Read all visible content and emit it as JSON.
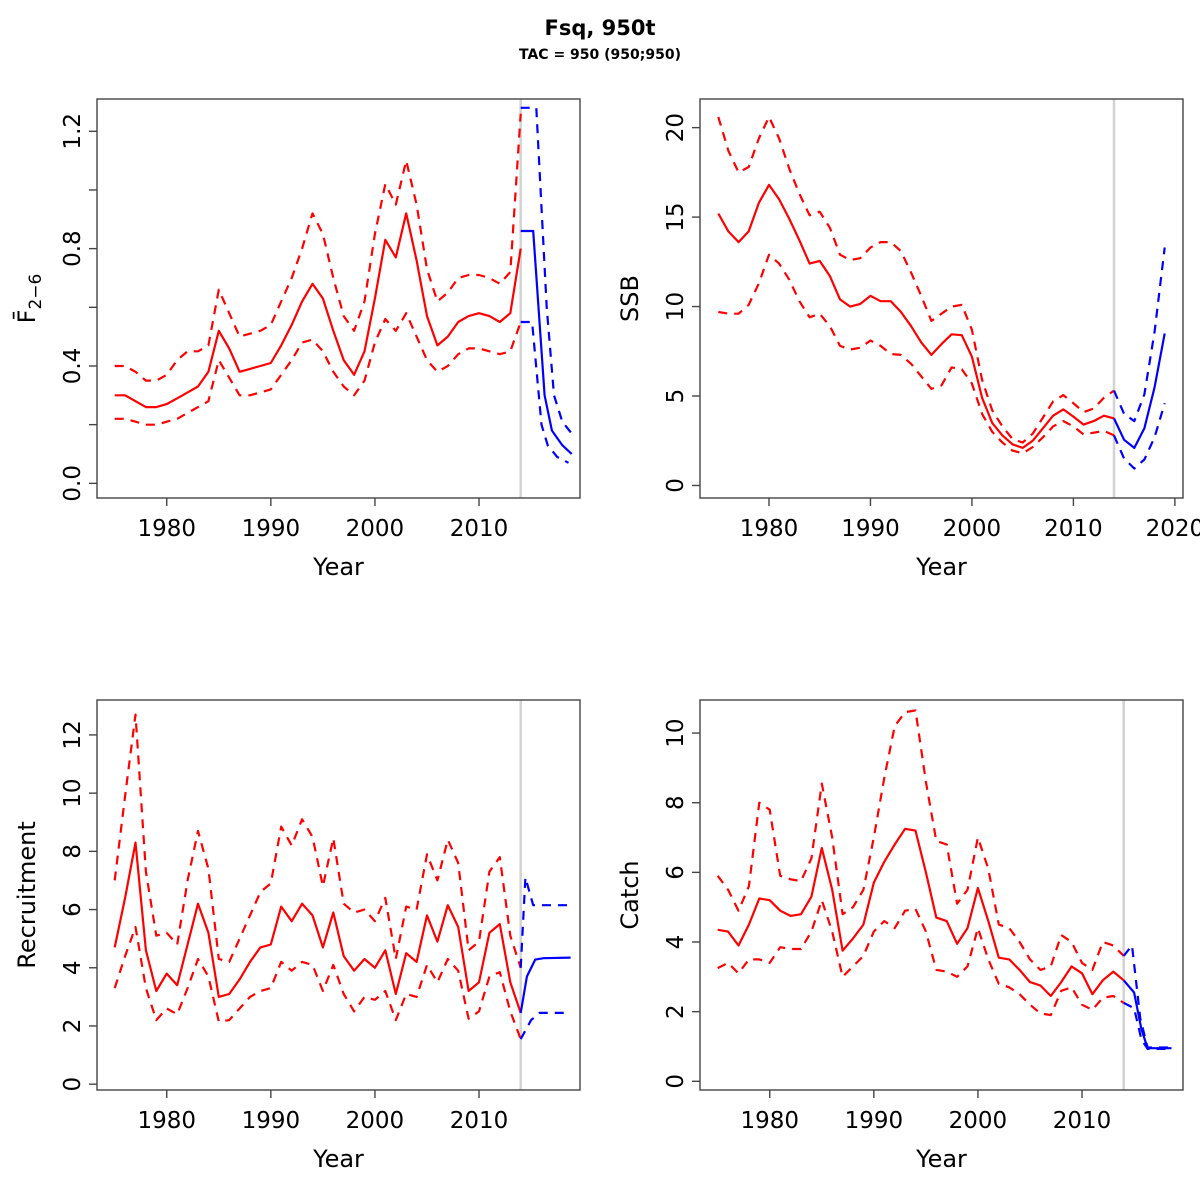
{
  "header": {
    "title": "Fsq, 950t",
    "subtitle": "TAC = 950 (950;950)"
  },
  "colors": {
    "historical": "#ff0000",
    "projection": "#0000ff",
    "divider": "#d3d3d3",
    "frame": "#454545",
    "text": "#000000"
  },
  "divider_year": 2014,
  "years_historical": [
    1975,
    1976,
    1977,
    1978,
    1979,
    1980,
    1981,
    1982,
    1983,
    1984,
    1985,
    1986,
    1987,
    1988,
    1989,
    1990,
    1991,
    1992,
    1993,
    1994,
    1995,
    1996,
    1997,
    1998,
    1999,
    2000,
    2001,
    2002,
    2003,
    2004,
    2005,
    2006,
    2007,
    2008,
    2009,
    2010,
    2011,
    2012,
    2013,
    2014
  ],
  "chart_data": [
    {
      "type": "line",
      "name": "fbar",
      "ylabel": "F̄",
      "ylabel_sub": "2−6",
      "xlabel": "Year",
      "xlim": [
        1973.3,
        2019.7
      ],
      "ylim": [
        -0.05,
        1.31
      ],
      "xticks": [
        1980,
        1990,
        2000,
        2010
      ],
      "yticks": [
        {
          "v": 0,
          "label": "0.0"
        },
        {
          "v": 0.2,
          "label": null
        },
        {
          "v": 0.4,
          "label": "0.4"
        },
        {
          "v": 0.6,
          "label": null
        },
        {
          "v": 0.8,
          "label": "0.8"
        },
        {
          "v": 1.0,
          "label": null
        },
        {
          "v": 1.2,
          "label": "1.2"
        }
      ],
      "legend": "red solid = median (historical), red dashed = CI, blue = projection",
      "series": [
        {
          "name": "median-historical",
          "role": "historical",
          "dash": false,
          "x_ref": "years_historical",
          "y": [
            0.3,
            0.3,
            0.28,
            0.26,
            0.26,
            0.27,
            0.29,
            0.31,
            0.33,
            0.38,
            0.52,
            0.46,
            0.38,
            0.39,
            0.4,
            0.41,
            0.47,
            0.54,
            0.62,
            0.68,
            0.63,
            0.52,
            0.42,
            0.37,
            0.45,
            0.63,
            0.83,
            0.77,
            0.92,
            0.76,
            0.57,
            0.47,
            0.5,
            0.55,
            0.57,
            0.58,
            0.57,
            0.55,
            0.58,
            0.8
          ]
        },
        {
          "name": "ci-upper-historical",
          "role": "historical",
          "dash": true,
          "x_ref": "years_historical",
          "y": [
            0.4,
            0.4,
            0.38,
            0.35,
            0.35,
            0.37,
            0.42,
            0.45,
            0.45,
            0.47,
            0.66,
            0.58,
            0.5,
            0.51,
            0.52,
            0.54,
            0.62,
            0.7,
            0.8,
            0.92,
            0.85,
            0.7,
            0.57,
            0.52,
            0.62,
            0.85,
            1.02,
            0.95,
            1.1,
            0.95,
            0.73,
            0.62,
            0.65,
            0.7,
            0.71,
            0.71,
            0.7,
            0.68,
            0.72,
            1.26
          ]
        },
        {
          "name": "ci-lower-historical",
          "role": "historical",
          "dash": true,
          "x_ref": "years_historical",
          "y": [
            0.22,
            0.22,
            0.21,
            0.2,
            0.2,
            0.21,
            0.22,
            0.24,
            0.26,
            0.28,
            0.42,
            0.36,
            0.3,
            0.3,
            0.31,
            0.32,
            0.37,
            0.42,
            0.48,
            0.49,
            0.45,
            0.38,
            0.33,
            0.3,
            0.35,
            0.48,
            0.56,
            0.52,
            0.58,
            0.5,
            0.42,
            0.38,
            0.4,
            0.44,
            0.46,
            0.46,
            0.45,
            0.44,
            0.45,
            0.55
          ]
        },
        {
          "name": "median-projection",
          "role": "projection",
          "dash": false,
          "x": [
            2014,
            2015.2,
            2016.3,
            2017,
            2018,
            2018.9
          ],
          "y": [
            0.86,
            0.86,
            0.3,
            0.18,
            0.13,
            0.1
          ]
        },
        {
          "name": "ci-upper-projection",
          "role": "projection",
          "dash": true,
          "x": [
            2014,
            2015.5,
            2016.5,
            2017.2,
            2018,
            2018.9
          ],
          "y": [
            1.28,
            1.28,
            0.6,
            0.3,
            0.21,
            0.17
          ]
        },
        {
          "name": "ci-lower-projection",
          "role": "projection",
          "dash": true,
          "x": [
            2014,
            2015.1,
            2016,
            2016.6,
            2017.5,
            2018.6
          ],
          "y": [
            0.55,
            0.55,
            0.2,
            0.13,
            0.09,
            0.07
          ]
        }
      ]
    },
    {
      "type": "line",
      "name": "ssb",
      "ylabel": "SSB",
      "xlabel": "Year",
      "xlim": [
        1973.2,
        2020.8
      ],
      "ylim": [
        -0.7,
        21.6
      ],
      "xticks": [
        1980,
        1990,
        2000,
        2010,
        2020
      ],
      "yticks": [
        {
          "v": 0,
          "label": "0"
        },
        {
          "v": 5,
          "label": "5"
        },
        {
          "v": 10,
          "label": "10"
        },
        {
          "v": 15,
          "label": "15"
        },
        {
          "v": 20,
          "label": "20"
        }
      ],
      "legend": "red solid = median (historical), red dashed = CI, blue = projection",
      "series": [
        {
          "name": "median-historical",
          "role": "historical",
          "dash": false,
          "x_ref": "years_historical",
          "y": [
            15.2,
            14.2,
            13.6,
            14.2,
            15.8,
            16.8,
            16.0,
            14.9,
            13.7,
            12.4,
            12.55,
            11.7,
            10.4,
            10.0,
            10.15,
            10.6,
            10.3,
            10.3,
            9.7,
            8.9,
            8.0,
            7.3,
            7.9,
            8.45,
            8.4,
            7.2,
            4.9,
            3.5,
            2.8,
            2.3,
            2.1,
            2.5,
            3.2,
            3.9,
            4.25,
            3.85,
            3.4,
            3.6,
            3.9,
            3.75
          ]
        },
        {
          "name": "ci-upper-historical",
          "role": "historical",
          "dash": true,
          "x_ref": "years_historical",
          "y": [
            20.6,
            18.7,
            17.5,
            17.8,
            19.4,
            20.6,
            19.4,
            17.7,
            16.3,
            15.1,
            15.3,
            14.4,
            12.9,
            12.6,
            12.7,
            13.3,
            13.6,
            13.6,
            13.1,
            11.9,
            10.6,
            9.2,
            9.6,
            10.0,
            10.1,
            8.7,
            5.9,
            4.2,
            3.3,
            2.6,
            2.4,
            2.9,
            3.8,
            4.7,
            5.05,
            4.6,
            4.1,
            4.3,
            4.9,
            5.3
          ]
        },
        {
          "name": "ci-lower-historical",
          "role": "historical",
          "dash": true,
          "x_ref": "years_historical",
          "y": [
            9.7,
            9.6,
            9.6,
            10.1,
            11.3,
            12.9,
            12.4,
            11.5,
            10.3,
            9.4,
            9.6,
            8.9,
            7.8,
            7.6,
            7.7,
            8.1,
            7.8,
            7.35,
            7.3,
            6.8,
            6.1,
            5.4,
            5.6,
            6.6,
            6.5,
            5.7,
            4.0,
            3.0,
            2.4,
            1.95,
            1.8,
            2.15,
            2.7,
            3.3,
            3.6,
            3.3,
            2.85,
            2.95,
            3.05,
            2.8
          ]
        },
        {
          "name": "median-projection",
          "role": "projection",
          "dash": false,
          "x": [
            2014,
            2015,
            2016,
            2017,
            2018,
            2019
          ],
          "y": [
            3.75,
            2.55,
            2.1,
            3.2,
            5.5,
            8.5
          ]
        },
        {
          "name": "ci-upper-projection",
          "role": "projection",
          "dash": true,
          "x": [
            2014,
            2015,
            2016,
            2017,
            2018,
            2019
          ],
          "y": [
            5.3,
            4.0,
            3.6,
            5.1,
            8.6,
            13.3
          ]
        },
        {
          "name": "ci-lower-projection",
          "role": "projection",
          "dash": true,
          "x": [
            2014,
            2015,
            2016,
            2017,
            2018,
            2019
          ],
          "y": [
            2.8,
            1.5,
            0.95,
            1.45,
            2.7,
            4.6
          ]
        }
      ]
    },
    {
      "type": "line",
      "name": "recruitment",
      "ylabel": "Recruitment",
      "xlabel": "Year",
      "xlim": [
        1973.3,
        2019.7
      ],
      "ylim": [
        -0.2,
        13.2
      ],
      "xticks": [
        1980,
        1990,
        2000,
        2010
      ],
      "yticks": [
        {
          "v": 0,
          "label": "0"
        },
        {
          "v": 2,
          "label": "2"
        },
        {
          "v": 4,
          "label": "4"
        },
        {
          "v": 6,
          "label": "6"
        },
        {
          "v": 8,
          "label": "8"
        },
        {
          "v": 10,
          "label": "10"
        },
        {
          "v": 12,
          "label": "12"
        }
      ],
      "legend": "red solid = median (historical), red dashed = CI, blue = projection",
      "series": [
        {
          "name": "median-historical",
          "role": "historical",
          "dash": false,
          "x_ref": "years_historical",
          "y": [
            4.7,
            6.4,
            8.3,
            4.6,
            3.2,
            3.8,
            3.4,
            4.8,
            6.2,
            5.2,
            3.0,
            3.1,
            3.6,
            4.2,
            4.7,
            4.8,
            6.1,
            5.6,
            6.2,
            5.8,
            4.7,
            5.9,
            4.4,
            3.9,
            4.3,
            4.0,
            4.6,
            3.1,
            4.5,
            4.2,
            5.8,
            4.9,
            6.15,
            5.4,
            3.2,
            3.5,
            5.2,
            5.5,
            3.5,
            2.45
          ]
        },
        {
          "name": "ci-upper-historical",
          "role": "historical",
          "dash": true,
          "x_ref": "years_historical",
          "y": [
            7.0,
            9.9,
            12.7,
            7.3,
            5.1,
            5.2,
            4.8,
            7.0,
            8.7,
            7.4,
            4.3,
            4.2,
            5.0,
            5.8,
            6.6,
            6.9,
            8.85,
            8.2,
            9.1,
            8.5,
            6.8,
            8.45,
            6.2,
            5.9,
            6.0,
            5.6,
            6.4,
            4.3,
            6.1,
            6.0,
            7.9,
            7.0,
            8.4,
            7.6,
            4.6,
            4.9,
            7.3,
            7.8,
            5.1,
            4.0
          ]
        },
        {
          "name": "ci-lower-historical",
          "role": "historical",
          "dash": true,
          "x_ref": "years_historical",
          "y": [
            3.3,
            4.4,
            5.4,
            3.3,
            2.2,
            2.6,
            2.4,
            3.3,
            4.3,
            3.7,
            2.15,
            2.2,
            2.6,
            3.0,
            3.2,
            3.3,
            4.2,
            3.9,
            4.2,
            4.1,
            3.2,
            4.1,
            3.1,
            2.5,
            3.0,
            2.9,
            3.2,
            2.2,
            3.1,
            3.0,
            4.1,
            3.5,
            4.3,
            3.9,
            2.25,
            2.5,
            3.7,
            3.85,
            2.5,
            1.55
          ]
        },
        {
          "name": "median-projection",
          "role": "projection",
          "dash": false,
          "x": [
            2014,
            2014.6,
            2015.4,
            2016.2,
            2018.8
          ],
          "y": [
            2.45,
            3.7,
            4.28,
            4.33,
            4.35
          ]
        },
        {
          "name": "ci-upper-projection",
          "role": "projection",
          "dash": true,
          "x": [
            2014,
            2014.45,
            2015.2,
            2018.8
          ],
          "y": [
            4.0,
            7.1,
            6.15,
            6.15
          ]
        },
        {
          "name": "ci-lower-projection",
          "role": "projection",
          "dash": true,
          "x": [
            2014,
            2015,
            2015.8,
            2018.8
          ],
          "y": [
            1.55,
            2.2,
            2.45,
            2.45
          ]
        }
      ]
    },
    {
      "type": "line",
      "name": "catch",
      "ylabel": "Catch",
      "xlabel": "Year",
      "xlim": [
        1973.3,
        2019.7
      ],
      "ylim": [
        -0.25,
        10.95
      ],
      "xticks": [
        1980,
        1990,
        2000,
        2010
      ],
      "yticks": [
        {
          "v": 0,
          "label": "0"
        },
        {
          "v": 2,
          "label": "2"
        },
        {
          "v": 4,
          "label": "4"
        },
        {
          "v": 6,
          "label": "6"
        },
        {
          "v": 8,
          "label": "8"
        },
        {
          "v": 10,
          "label": "10"
        }
      ],
      "legend": "red solid = median (historical), red dashed = CI, blue = projection",
      "series": [
        {
          "name": "median-historical",
          "role": "historical",
          "dash": false,
          "x_ref": "years_historical",
          "y": [
            4.35,
            4.3,
            3.9,
            4.5,
            5.25,
            5.2,
            4.9,
            4.75,
            4.8,
            5.3,
            6.7,
            5.5,
            3.75,
            4.1,
            4.5,
            5.7,
            6.3,
            6.8,
            7.25,
            7.2,
            6.0,
            4.7,
            4.6,
            3.95,
            4.4,
            5.55,
            4.6,
            3.55,
            3.5,
            3.2,
            2.85,
            2.75,
            2.45,
            2.85,
            3.3,
            3.1,
            2.5,
            2.9,
            3.15,
            2.9
          ]
        },
        {
          "name": "ci-upper-historical",
          "role": "historical",
          "dash": true,
          "x_ref": "years_historical",
          "y": [
            5.9,
            5.5,
            4.9,
            5.6,
            8.0,
            7.8,
            5.9,
            5.8,
            5.75,
            6.4,
            8.55,
            7.0,
            4.8,
            5.0,
            5.5,
            7.0,
            8.7,
            10.2,
            10.6,
            10.65,
            8.6,
            6.9,
            6.8,
            5.1,
            5.5,
            7.0,
            6.1,
            4.5,
            4.4,
            4.0,
            3.5,
            3.2,
            3.3,
            4.2,
            4.0,
            3.4,
            3.2,
            4.0,
            3.9,
            3.6
          ]
        },
        {
          "name": "ci-lower-historical",
          "role": "historical",
          "dash": true,
          "x_ref": "years_historical",
          "y": [
            3.25,
            3.4,
            3.1,
            3.5,
            3.5,
            3.4,
            3.85,
            3.8,
            3.8,
            4.3,
            5.2,
            4.3,
            3.0,
            3.3,
            3.6,
            4.3,
            4.6,
            4.4,
            4.9,
            4.95,
            4.3,
            3.2,
            3.15,
            3.0,
            3.3,
            4.4,
            3.5,
            2.8,
            2.7,
            2.5,
            2.2,
            1.95,
            1.9,
            2.6,
            2.7,
            2.2,
            2.05,
            2.4,
            2.45,
            2.25
          ]
        },
        {
          "name": "median-projection",
          "role": "projection",
          "dash": false,
          "x": [
            2014,
            2015,
            2015.7,
            2016.3,
            2018.6
          ],
          "y": [
            2.9,
            2.55,
            1.5,
            0.95,
            0.95
          ]
        },
        {
          "name": "ci-upper-projection",
          "role": "projection",
          "dash": true,
          "x": [
            2014,
            2014.8,
            2015.6,
            2016.3,
            2018.6
          ],
          "y": [
            3.6,
            3.9,
            1.8,
            0.97,
            0.97
          ]
        },
        {
          "name": "ci-lower-projection",
          "role": "projection",
          "dash": true,
          "x": [
            2014,
            2015,
            2015.7,
            2016.3,
            2018.6
          ],
          "y": [
            2.25,
            2.1,
            1.2,
            0.93,
            0.93
          ]
        }
      ]
    }
  ]
}
